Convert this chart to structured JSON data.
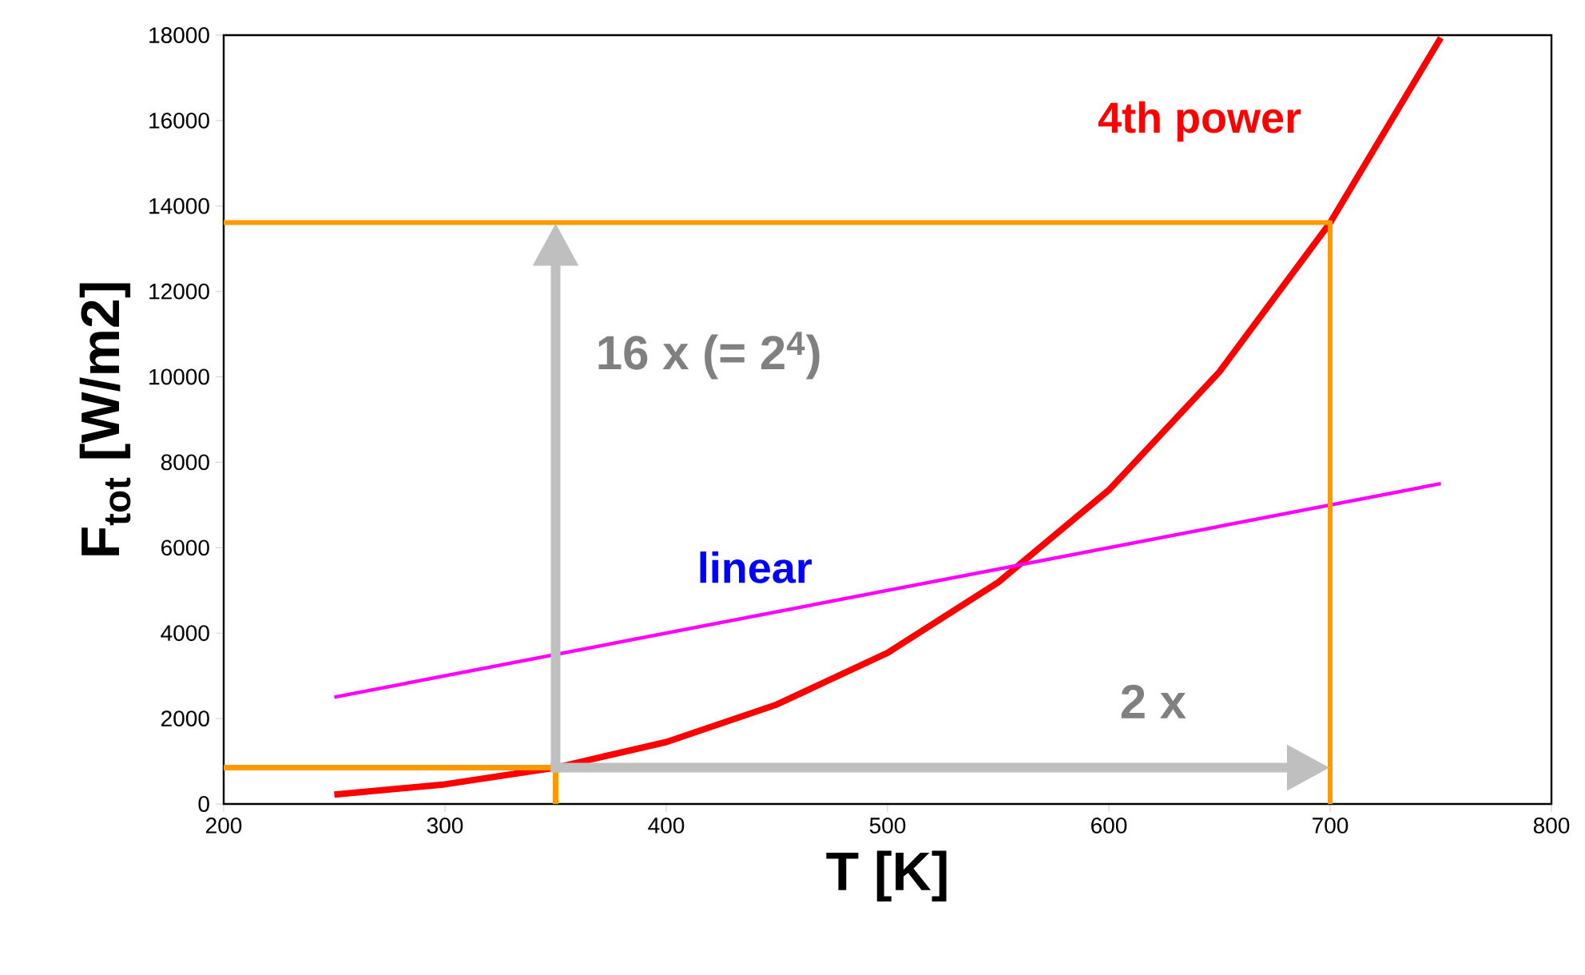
{
  "chart_data": {
    "type": "line",
    "xlabel": "T [K]",
    "ylabel": "F$_{tot}$ [W/m2]",
    "xlim": [
      200,
      800
    ],
    "ylim": [
      0,
      18000
    ],
    "xticks": [
      200,
      300,
      400,
      500,
      600,
      700,
      800
    ],
    "yticks": [
      0,
      2000,
      4000,
      6000,
      8000,
      10000,
      12000,
      14000,
      16000,
      18000
    ],
    "series": [
      {
        "name": "4th power",
        "color": "#ff0000",
        "x": [
          250,
          300,
          350,
          400,
          450,
          500,
          550,
          600,
          650,
          700,
          750
        ],
        "values": [
          220,
          460,
          850,
          1450,
          2330,
          3540,
          5190,
          7350,
          10120,
          13610,
          17940
        ]
      },
      {
        "name": "linear",
        "color": "#ff00ff",
        "x": [
          250,
          750
        ],
        "values": [
          2500,
          7500
        ]
      },
      {
        "color": "#ff9900",
        "x": [
          200,
          350,
          350
        ],
        "values": [
          850,
          850,
          0
        ]
      },
      {
        "color": "#ff9900",
        "x": [
          200,
          700,
          700
        ],
        "values": [
          13610,
          13610,
          0
        ]
      }
    ],
    "annotations": [
      "16 x (= 2$^{4}$)",
      "2 x"
    ]
  }
}
